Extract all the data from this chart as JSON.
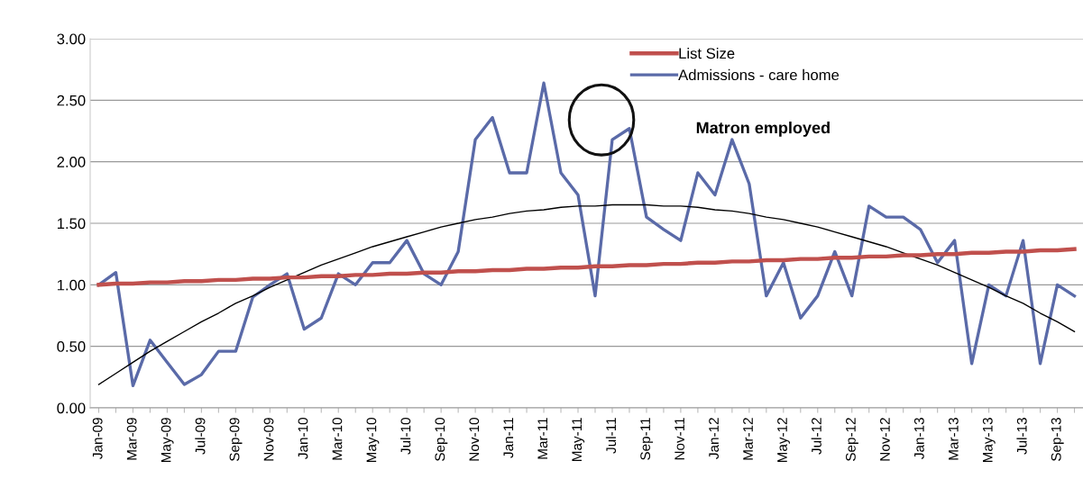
{
  "chart_data": {
    "type": "line",
    "categories": [
      "Jan-09",
      null,
      "Mar-09",
      null,
      "May-09",
      null,
      "Jul-09",
      null,
      "Sep-09",
      null,
      "Nov-09",
      null,
      "Jan-10",
      null,
      "Mar-10",
      null,
      "May-10",
      null,
      "Jul-10",
      null,
      "Sep-10",
      null,
      "Nov-10",
      null,
      "Jan-11",
      null,
      "Mar-11",
      null,
      "May-11",
      null,
      "Jul-11",
      null,
      "Sep-11",
      null,
      "Nov-11",
      null,
      "Jan-12",
      null,
      "Mar-12",
      null,
      "May-12",
      null,
      "Jul-12",
      null,
      "Sep-12",
      null,
      "Nov-12",
      null,
      "Jan-13",
      null,
      "Mar-13",
      null,
      "May-13",
      null,
      "Jul-13",
      null,
      "Sep-13",
      null
    ],
    "series": [
      {
        "name": "List Size",
        "color": "#c0504d",
        "values": [
          1.0,
          1.01,
          1.01,
          1.02,
          1.02,
          1.03,
          1.03,
          1.04,
          1.04,
          1.05,
          1.05,
          1.06,
          1.06,
          1.07,
          1.07,
          1.08,
          1.08,
          1.09,
          1.09,
          1.1,
          1.1,
          1.11,
          1.11,
          1.12,
          1.12,
          1.13,
          1.13,
          1.14,
          1.14,
          1.15,
          1.15,
          1.16,
          1.16,
          1.17,
          1.17,
          1.18,
          1.18,
          1.19,
          1.19,
          1.2,
          1.2,
          1.21,
          1.21,
          1.22,
          1.22,
          1.23,
          1.23,
          1.24,
          1.24,
          1.25,
          1.25,
          1.26,
          1.26,
          1.27,
          1.27,
          1.28,
          1.28,
          1.29
        ]
      },
      {
        "name": "Admissions - care home",
        "color": "#5a6aa8",
        "values": [
          1.0,
          1.1,
          0.18,
          0.55,
          0.37,
          0.19,
          0.27,
          0.46,
          0.46,
          0.9,
          1.0,
          1.09,
          0.64,
          0.73,
          1.09,
          1.0,
          1.18,
          1.18,
          1.36,
          1.09,
          1.0,
          1.27,
          2.18,
          2.36,
          1.91,
          1.91,
          2.64,
          1.91,
          1.73,
          0.91,
          2.18,
          2.27,
          1.55,
          1.45,
          1.36,
          1.91,
          1.73,
          2.18,
          1.82,
          0.91,
          1.18,
          0.73,
          0.91,
          1.27,
          0.91,
          1.64,
          1.55,
          1.55,
          1.45,
          1.18,
          1.36,
          0.36,
          1.0,
          0.91,
          1.36,
          0.36,
          1.0,
          0.91
        ]
      },
      {
        "color": "#000000",
        "values": [
          0.19,
          0.28,
          0.37,
          0.46,
          0.54,
          0.62,
          0.7,
          0.77,
          0.85,
          0.91,
          0.98,
          1.04,
          1.1,
          1.16,
          1.21,
          1.26,
          1.31,
          1.35,
          1.39,
          1.43,
          1.47,
          1.5,
          1.53,
          1.55,
          1.58,
          1.6,
          1.61,
          1.63,
          1.64,
          1.64,
          1.65,
          1.65,
          1.65,
          1.64,
          1.64,
          1.63,
          1.61,
          1.6,
          1.58,
          1.55,
          1.53,
          1.5,
          1.47,
          1.43,
          1.39,
          1.35,
          1.31,
          1.26,
          1.21,
          1.16,
          1.1,
          1.04,
          0.98,
          0.91,
          0.85,
          0.77,
          0.7,
          0.62
        ]
      }
    ],
    "ylim": [
      0,
      3
    ],
    "yticks": [
      {
        "value": 0,
        "label": "0.00"
      },
      {
        "value": 0.5,
        "label": "0.50"
      },
      {
        "value": 1,
        "label": "1.00"
      },
      {
        "value": 1.5,
        "label": "1.50"
      },
      {
        "value": 2,
        "label": "2.00"
      },
      {
        "value": 2.5,
        "label": "2.50"
      },
      {
        "value": 3,
        "label": "3.00"
      }
    ],
    "grid": "y",
    "legend": "top",
    "marker": "none",
    "line_style": "solid",
    "annotations": [
      "Matron employed"
    ]
  }
}
